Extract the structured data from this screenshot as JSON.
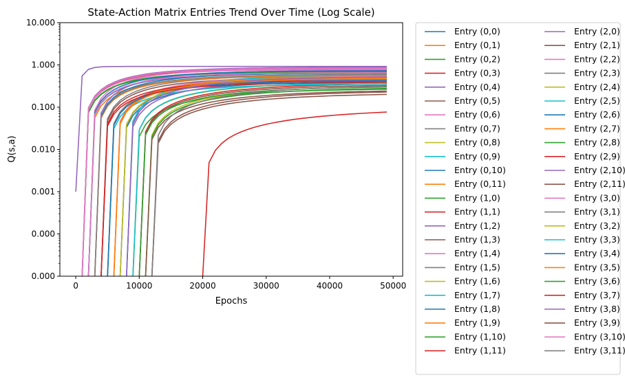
{
  "chart_data": {
    "type": "line",
    "title": "State-Action Matrix Entries Trend Over Time (Log Scale)",
    "xlabel": "Epochs",
    "ylabel": "Q(s,a)",
    "xlim": [
      -2500,
      51500
    ],
    "ylim": [
      1e-05,
      10
    ],
    "yscale": "log",
    "xticks": [
      0,
      10000,
      20000,
      30000,
      40000,
      50000
    ],
    "xtick_labels": [
      "0",
      "10000",
      "20000",
      "30000",
      "40000",
      "50000"
    ],
    "yticks": [
      1e-05,
      0.0001,
      0.001,
      0.01,
      0.1,
      1,
      10
    ],
    "ytick_labels": [
      "0.000",
      "0.000",
      "0.001",
      "0.010",
      "0.100",
      "1.000",
      "10.000"
    ],
    "grid": false,
    "legend": {
      "placement": "outside-right",
      "columns": 2
    },
    "palette": [
      "#1f77b4",
      "#ff7f0e",
      "#2ca02c",
      "#d62728",
      "#9467bd",
      "#8c564b",
      "#e377c2",
      "#7f7f7f",
      "#bcbd22",
      "#17becf"
    ],
    "series": [
      {
        "name": "Entry (0,0)",
        "start": 7000,
        "final": 0.42
      },
      {
        "name": "Entry (0,1)",
        "start": 2000,
        "final": 0.55
      },
      {
        "name": "Entry (0,2)",
        "start": 1000,
        "final": 0.68
      },
      {
        "name": "Entry (0,3)",
        "start": 1000,
        "final": 0.8
      },
      {
        "name": "Entry (0,4)",
        "start": 0,
        "final": 0.92,
        "initial": 0.001
      },
      {
        "name": "Entry (0,5)",
        "start": 12000,
        "final": 0.25
      },
      {
        "name": "Entry (0,6)",
        "start": 2000,
        "final": 0.83
      },
      {
        "name": "Entry (0,7)",
        "start": 4000,
        "final": 0.58
      },
      {
        "name": "Entry (0,8)",
        "start": 6000,
        "final": 0.5
      },
      {
        "name": "Entry (0,9)",
        "start": 8000,
        "final": 0.62
      },
      {
        "name": "Entry (0,10)",
        "start": 3000,
        "final": 0.65
      },
      {
        "name": "Entry (0,11)",
        "start": 5000,
        "final": 0.45
      },
      {
        "name": "Entry (1,0)",
        "start": 9000,
        "final": 0.28
      },
      {
        "name": "Entry (1,1)",
        "start": 10000,
        "final": 0.38
      },
      {
        "name": "Entry (1,2)",
        "start": 3000,
        "final": 0.75
      },
      {
        "name": "Entry (1,3)",
        "start": 4000,
        "final": 0.52
      },
      {
        "name": "Entry (1,4)",
        "start": 6000,
        "final": 0.56
      },
      {
        "name": "Entry (1,5)",
        "start": 5000,
        "final": 0.47
      },
      {
        "name": "Entry (1,6)",
        "start": 11000,
        "final": 0.33
      },
      {
        "name": "Entry (1,7)",
        "start": 8000,
        "final": 0.6
      },
      {
        "name": "Entry (1,8)",
        "start": 2000,
        "final": 0.64
      },
      {
        "name": "Entry (1,9)",
        "start": 3000,
        "final": 0.57
      },
      {
        "name": "Entry (1,10)",
        "start": 1000,
        "final": 0.7
      },
      {
        "name": "Entry (1,11)",
        "start": 20000,
        "final": 0.1
      },
      {
        "name": "Entry (2,0)",
        "start": 1000,
        "final": 0.88
      },
      {
        "name": "Entry (2,1)",
        "start": 12000,
        "final": 0.22
      },
      {
        "name": "Entry (2,2)",
        "start": 1000,
        "final": 0.85
      },
      {
        "name": "Entry (2,3)",
        "start": 7000,
        "final": 0.48
      },
      {
        "name": "Entry (2,4)",
        "start": 9000,
        "final": 0.4
      },
      {
        "name": "Entry (2,5)",
        "start": 5000,
        "final": 0.36
      },
      {
        "name": "Entry (2,6)",
        "start": 2000,
        "final": 0.73
      },
      {
        "name": "Entry (2,7)",
        "start": 6000,
        "final": 0.53
      },
      {
        "name": "Entry (2,8)",
        "start": 11000,
        "final": 0.3
      },
      {
        "name": "Entry (2,9)",
        "start": 4000,
        "final": 0.44
      },
      {
        "name": "Entry (2,10)",
        "start": 8000,
        "final": 0.46
      },
      {
        "name": "Entry (2,11)",
        "start": 10000,
        "final": 0.35
      },
      {
        "name": "Entry (3,0)",
        "start": 1000,
        "final": 0.78
      },
      {
        "name": "Entry (3,1)",
        "start": 3000,
        "final": 0.6
      },
      {
        "name": "Entry (3,2)",
        "start": 7000,
        "final": 0.5
      },
      {
        "name": "Entry (3,3)",
        "start": 9000,
        "final": 0.41
      },
      {
        "name": "Entry (3,4)",
        "start": 5000,
        "final": 0.43
      },
      {
        "name": "Entry (3,5)",
        "start": 6000,
        "final": 0.49
      },
      {
        "name": "Entry (3,6)",
        "start": 10000,
        "final": 0.32
      },
      {
        "name": "Entry (3,7)",
        "start": 4000,
        "final": 0.39
      },
      {
        "name": "Entry (3,8)",
        "start": 8000,
        "final": 0.54
      },
      {
        "name": "Entry (3,9)",
        "start": 11000,
        "final": 0.26
      },
      {
        "name": "Entry (3,10)",
        "start": 2000,
        "final": 0.66
      },
      {
        "name": "Entry (3,11)",
        "start": 12000,
        "final": 0.34
      }
    ]
  }
}
